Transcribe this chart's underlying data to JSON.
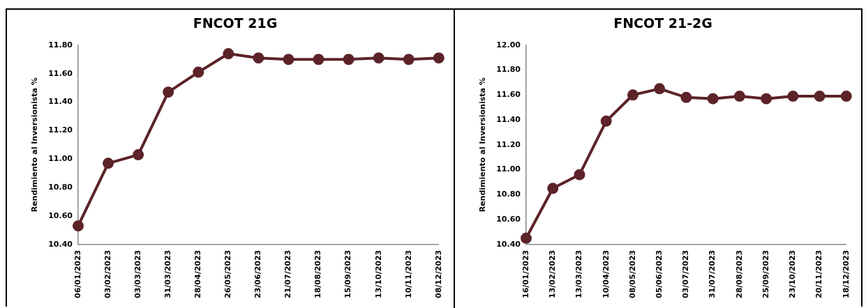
{
  "chart_data": [
    {
      "type": "line",
      "title": "FNCOT 21G",
      "ylabel": "Rendimiento al Inversionista %",
      "categories": [
        "06/01/2023",
        "03/02/2023",
        "03/03/2023",
        "31/03/2023",
        "28/04/2023",
        "26/05/2023",
        "23/06/2023",
        "21/07/2023",
        "18/08/2023",
        "15/09/2023",
        "13/10/2023",
        "10/11/2023",
        "08/12/2023"
      ],
      "series": [
        {
          "color": "#5c2328",
          "values": [
            10.53,
            10.97,
            11.03,
            11.47,
            11.61,
            11.74,
            11.71,
            11.7,
            11.7,
            11.7,
            11.71,
            11.7,
            11.71
          ]
        }
      ],
      "ylim": [
        10.4,
        11.8
      ],
      "yticks": [
        {
          "value": 10.4,
          "label": "10.40"
        },
        {
          "value": 10.6,
          "label": "10.60"
        },
        {
          "value": 10.8,
          "label": "10.80"
        },
        {
          "value": 11.0,
          "label": "11.00"
        },
        {
          "value": 11.2,
          "label": "11.20"
        },
        {
          "value": 11.4,
          "label": "11.40"
        },
        {
          "value": 11.6,
          "label": "11.60"
        },
        {
          "value": 11.8,
          "label": "11.80"
        }
      ],
      "grid": false,
      "legend": false,
      "marker": "circle",
      "line_style": "solid"
    },
    {
      "type": "line",
      "title": "FNCOT 21-2G",
      "ylabel": "Rendimiento al Inversionista %",
      "categories": [
        "16/01/2023",
        "13/02/2023",
        "13/03/2023",
        "10/04/2023",
        "08/05/2023",
        "05/06/2023",
        "03/07/2023",
        "31/07/2023",
        "28/08/2023",
        "25/09/2023",
        "23/10/2023",
        "20/11/2023",
        "18/12/2023"
      ],
      "series": [
        {
          "color": "#5c2328",
          "values": [
            10.45,
            10.85,
            10.96,
            11.39,
            11.6,
            11.65,
            11.58,
            11.57,
            11.59,
            11.57,
            11.59,
            11.59,
            11.59
          ]
        }
      ],
      "ylim": [
        10.4,
        12.0
      ],
      "yticks": [
        {
          "value": 10.4,
          "label": "10.40"
        },
        {
          "value": 10.6,
          "label": "10.60"
        },
        {
          "value": 10.8,
          "label": "10.80"
        },
        {
          "value": 11.0,
          "label": "11.00"
        },
        {
          "value": 11.2,
          "label": "11.20"
        },
        {
          "value": 11.4,
          "label": "11.40"
        },
        {
          "value": 11.6,
          "label": "11.60"
        },
        {
          "value": 11.8,
          "label": "11.80"
        },
        {
          "value": 12.0,
          "label": "12.00"
        }
      ],
      "grid": false,
      "legend": false,
      "marker": "circle",
      "line_style": "solid"
    }
  ]
}
